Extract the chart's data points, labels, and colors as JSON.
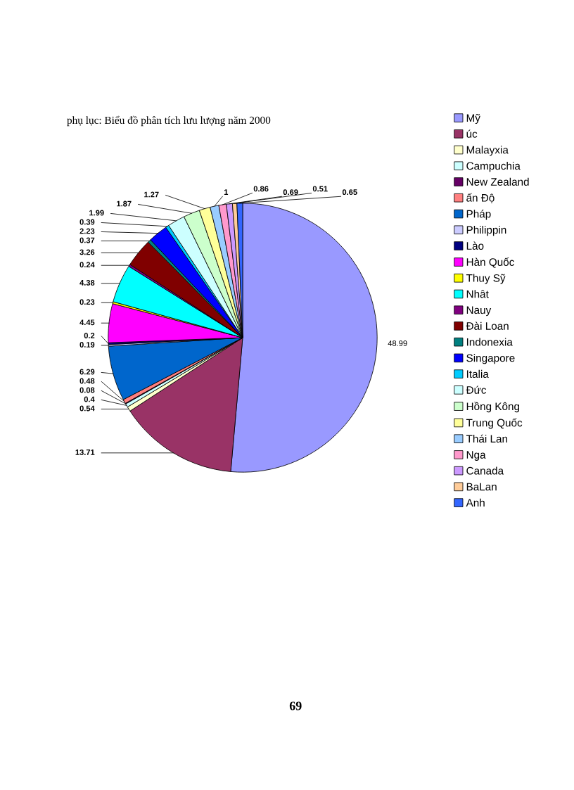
{
  "chart_data": {
    "type": "pie",
    "title": "phụ lục: Biểu đồ phân tích lưu lượng năm 2000",
    "categories": [
      "Mỹ",
      "úc",
      "Malayxia",
      "Campuchia",
      "New Zealand",
      "ấn Độ",
      "Pháp",
      "Philippin",
      "Lào",
      "Hàn Quốc",
      "Thuy Sỹ",
      "Nhât",
      "Nauy",
      "Đài Loan",
      "Indonexia",
      "Singapore",
      "Italia",
      "Đức",
      "Hồng Kông",
      "Trung Quốc",
      "Thái Lan",
      "Nga",
      "Canada",
      "BaLan",
      "Anh"
    ],
    "values": [
      48.99,
      13.71,
      0.54,
      0.4,
      0.08,
      0.48,
      6.29,
      0.19,
      0.2,
      4.45,
      0.23,
      4.38,
      0.24,
      3.26,
      0.37,
      2.23,
      0.39,
      1.99,
      1.87,
      1.27,
      1,
      0.86,
      0.69,
      0.51,
      0.65
    ],
    "colors": [
      "#9999ff",
      "#993366",
      "#ffffcc",
      "#ccffff",
      "#660066",
      "#ff8080",
      "#0066cc",
      "#ccccff",
      "#000080",
      "#ff00ff",
      "#ffff00",
      "#00ffff",
      "#800080",
      "#800000",
      "#008080",
      "#0000ff",
      "#00ccff",
      "#ccffff",
      "#ccffcc",
      "#ffff99",
      "#99ccff",
      "#ff99cc",
      "#cc99ff",
      "#ffcc99",
      "#3366ff"
    ],
    "data_labels": true,
    "legend": "right",
    "annotations": [
      "69"
    ]
  }
}
